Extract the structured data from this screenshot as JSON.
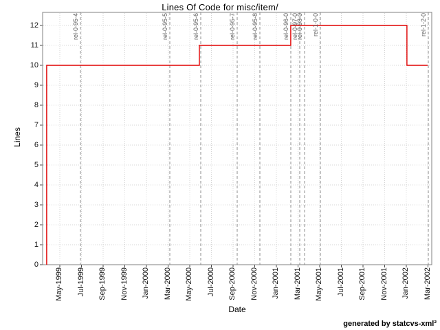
{
  "chart_data": {
    "type": "line",
    "step": true,
    "title": "Lines Of Code for misc/item/",
    "xlabel": "Date",
    "ylabel": "Lines",
    "footer": "generated by statcvs-xml²",
    "grid": true,
    "x_unit": "months since May-1999 tick",
    "x_axis_range_months": [
      -1.6,
      34.4
    ],
    "ylim": [
      0,
      12.66
    ],
    "y_ticks": [
      0,
      1,
      2,
      3,
      4,
      5,
      6,
      7,
      8,
      9,
      10,
      11,
      12
    ],
    "x_ticks": [
      {
        "label": "May-1999",
        "m": 0
      },
      {
        "label": "Jul-1999",
        "m": 2
      },
      {
        "label": "Sep-1999",
        "m": 4
      },
      {
        "label": "Nov-1999",
        "m": 6
      },
      {
        "label": "Jan-2000",
        "m": 8
      },
      {
        "label": "Mar-2000",
        "m": 10
      },
      {
        "label": "May-2000",
        "m": 12
      },
      {
        "label": "Jul-2000",
        "m": 14
      },
      {
        "label": "Sep-2000",
        "m": 16
      },
      {
        "label": "Nov-2000",
        "m": 18
      },
      {
        "label": "Jan-2001",
        "m": 20
      },
      {
        "label": "Mar-2001",
        "m": 22
      },
      {
        "label": "May-2001",
        "m": 24
      },
      {
        "label": "Jul-2001",
        "m": 26
      },
      {
        "label": "Sep-2001",
        "m": 28
      },
      {
        "label": "Nov-2001",
        "m": 30
      },
      {
        "label": "Jan-2002",
        "m": 32
      },
      {
        "label": "Mar-2002",
        "m": 34
      }
    ],
    "series": [
      {
        "name": "Lines Of Code",
        "color": "#e00000",
        "points": [
          [
            -1.21,
            0
          ],
          [
            -1.21,
            10
          ],
          [
            12.89,
            10
          ],
          [
            12.89,
            11
          ],
          [
            21.33,
            11
          ],
          [
            21.33,
            12
          ],
          [
            32.06,
            12
          ],
          [
            32.06,
            10
          ],
          [
            33.97,
            10
          ]
        ]
      }
    ],
    "loc_changes": [
      {
        "date": "~Apr-1999",
        "loc": 10
      },
      {
        "date": "~May-2000",
        "loc": 11
      },
      {
        "date": "~Feb-2001",
        "loc": 12
      },
      {
        "date": "~Jan-2002",
        "loc": 10
      }
    ],
    "releases": [
      {
        "label": "rel-0-95-4",
        "m": 1.9,
        "date": "~Jun-1999"
      },
      {
        "label": "rel-0-95-5",
        "m": 10.16,
        "date": "~Mar-2000"
      },
      {
        "label": "rel-0-95-6",
        "m": 13.02,
        "date": "~Jun-2000"
      },
      {
        "label": "rel-0-95-7",
        "m": 16.38,
        "date": "~Sep-2000"
      },
      {
        "label": "rel-0-95-8",
        "m": 18.48,
        "date": "~Nov-2000"
      },
      {
        "label": "rel-0-96-0",
        "m": 21.33,
        "date": "~Feb-2001"
      },
      {
        "label": "rel-0-97-0",
        "m": 22.16,
        "date": "~Mar-2001"
      },
      {
        "label": "rel-0-98-0",
        "m": 22.6,
        "date": "~Mar-2001"
      },
      {
        "label": "rel-1-0-0",
        "m": 24.06,
        "date": "~May-2001"
      },
      {
        "label": "rel-1-2-0",
        "m": 34.03,
        "date": "~Mar-2002"
      }
    ],
    "colors": {
      "background": "#ffffff",
      "line": "#e00000",
      "grid": "#d4d4d4",
      "release_line": "#8c8c8c",
      "release_label": "#5f5f5f",
      "border": "#808080",
      "tick": "#444444",
      "text": "#000000"
    },
    "legend": "none"
  }
}
